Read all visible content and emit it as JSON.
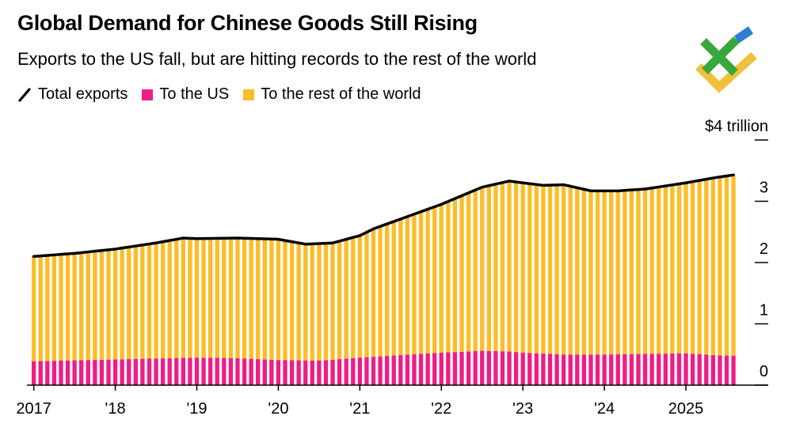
{
  "title": "Global Demand for Chinese Goods Still Rising",
  "subtitle": "Exports to the US fall, but are hitting records to the rest of the world",
  "legend": {
    "total": "Total exports",
    "us": "To the US",
    "row": "To the rest of the world"
  },
  "colors": {
    "us": "#ee1d86",
    "row": "#fbbd29",
    "total": "#000000",
    "logo_green": "#3aa73c",
    "logo_blue": "#2d7fd1",
    "logo_yellow": "#f2c13b"
  },
  "chart_data": {
    "type": "bar",
    "stacked": true,
    "unit": "$ trillion (12-month rolling sum)",
    "x_start": "2017-01",
    "x_end": "2025-08",
    "ylim": [
      0,
      4
    ],
    "yticks": [
      0,
      1,
      2,
      3,
      4
    ],
    "ytick_labels": [
      "0",
      "1",
      "2",
      "3",
      "$4 trillion"
    ],
    "xticks": [
      "2017",
      "'18",
      "'19",
      "'20",
      "'21",
      "'22",
      "'23",
      "'24",
      "2025"
    ],
    "series": [
      {
        "name": "To the US",
        "color": "#ee1d86",
        "anchors": [
          [
            0,
            0.39
          ],
          [
            12,
            0.42
          ],
          [
            24,
            0.45
          ],
          [
            30,
            0.44
          ],
          [
            36,
            0.41
          ],
          [
            42,
            0.4
          ],
          [
            48,
            0.45
          ],
          [
            54,
            0.49
          ],
          [
            60,
            0.53
          ],
          [
            66,
            0.56
          ],
          [
            70,
            0.55
          ],
          [
            72,
            0.53
          ],
          [
            78,
            0.5
          ],
          [
            84,
            0.5
          ],
          [
            96,
            0.52
          ],
          [
            100,
            0.49
          ],
          [
            103,
            0.48
          ]
        ]
      },
      {
        "name": "Total exports",
        "color": "#000000",
        "anchors": [
          [
            0,
            2.1
          ],
          [
            6,
            2.15
          ],
          [
            12,
            2.22
          ],
          [
            18,
            2.32
          ],
          [
            22,
            2.4
          ],
          [
            24,
            2.39
          ],
          [
            30,
            2.4
          ],
          [
            36,
            2.38
          ],
          [
            40,
            2.3
          ],
          [
            44,
            2.32
          ],
          [
            48,
            2.44
          ],
          [
            50,
            2.55
          ],
          [
            54,
            2.71
          ],
          [
            60,
            2.95
          ],
          [
            66,
            3.23
          ],
          [
            70,
            3.33
          ],
          [
            72,
            3.3
          ],
          [
            75,
            3.26
          ],
          [
            78,
            3.27
          ],
          [
            82,
            3.17
          ],
          [
            86,
            3.17
          ],
          [
            90,
            3.2
          ],
          [
            96,
            3.3
          ],
          [
            100,
            3.38
          ],
          [
            103,
            3.43
          ]
        ]
      }
    ],
    "derived_series": {
      "name": "To the rest of the world",
      "rule": "Total exports minus To the US",
      "color": "#fbbd29"
    }
  }
}
